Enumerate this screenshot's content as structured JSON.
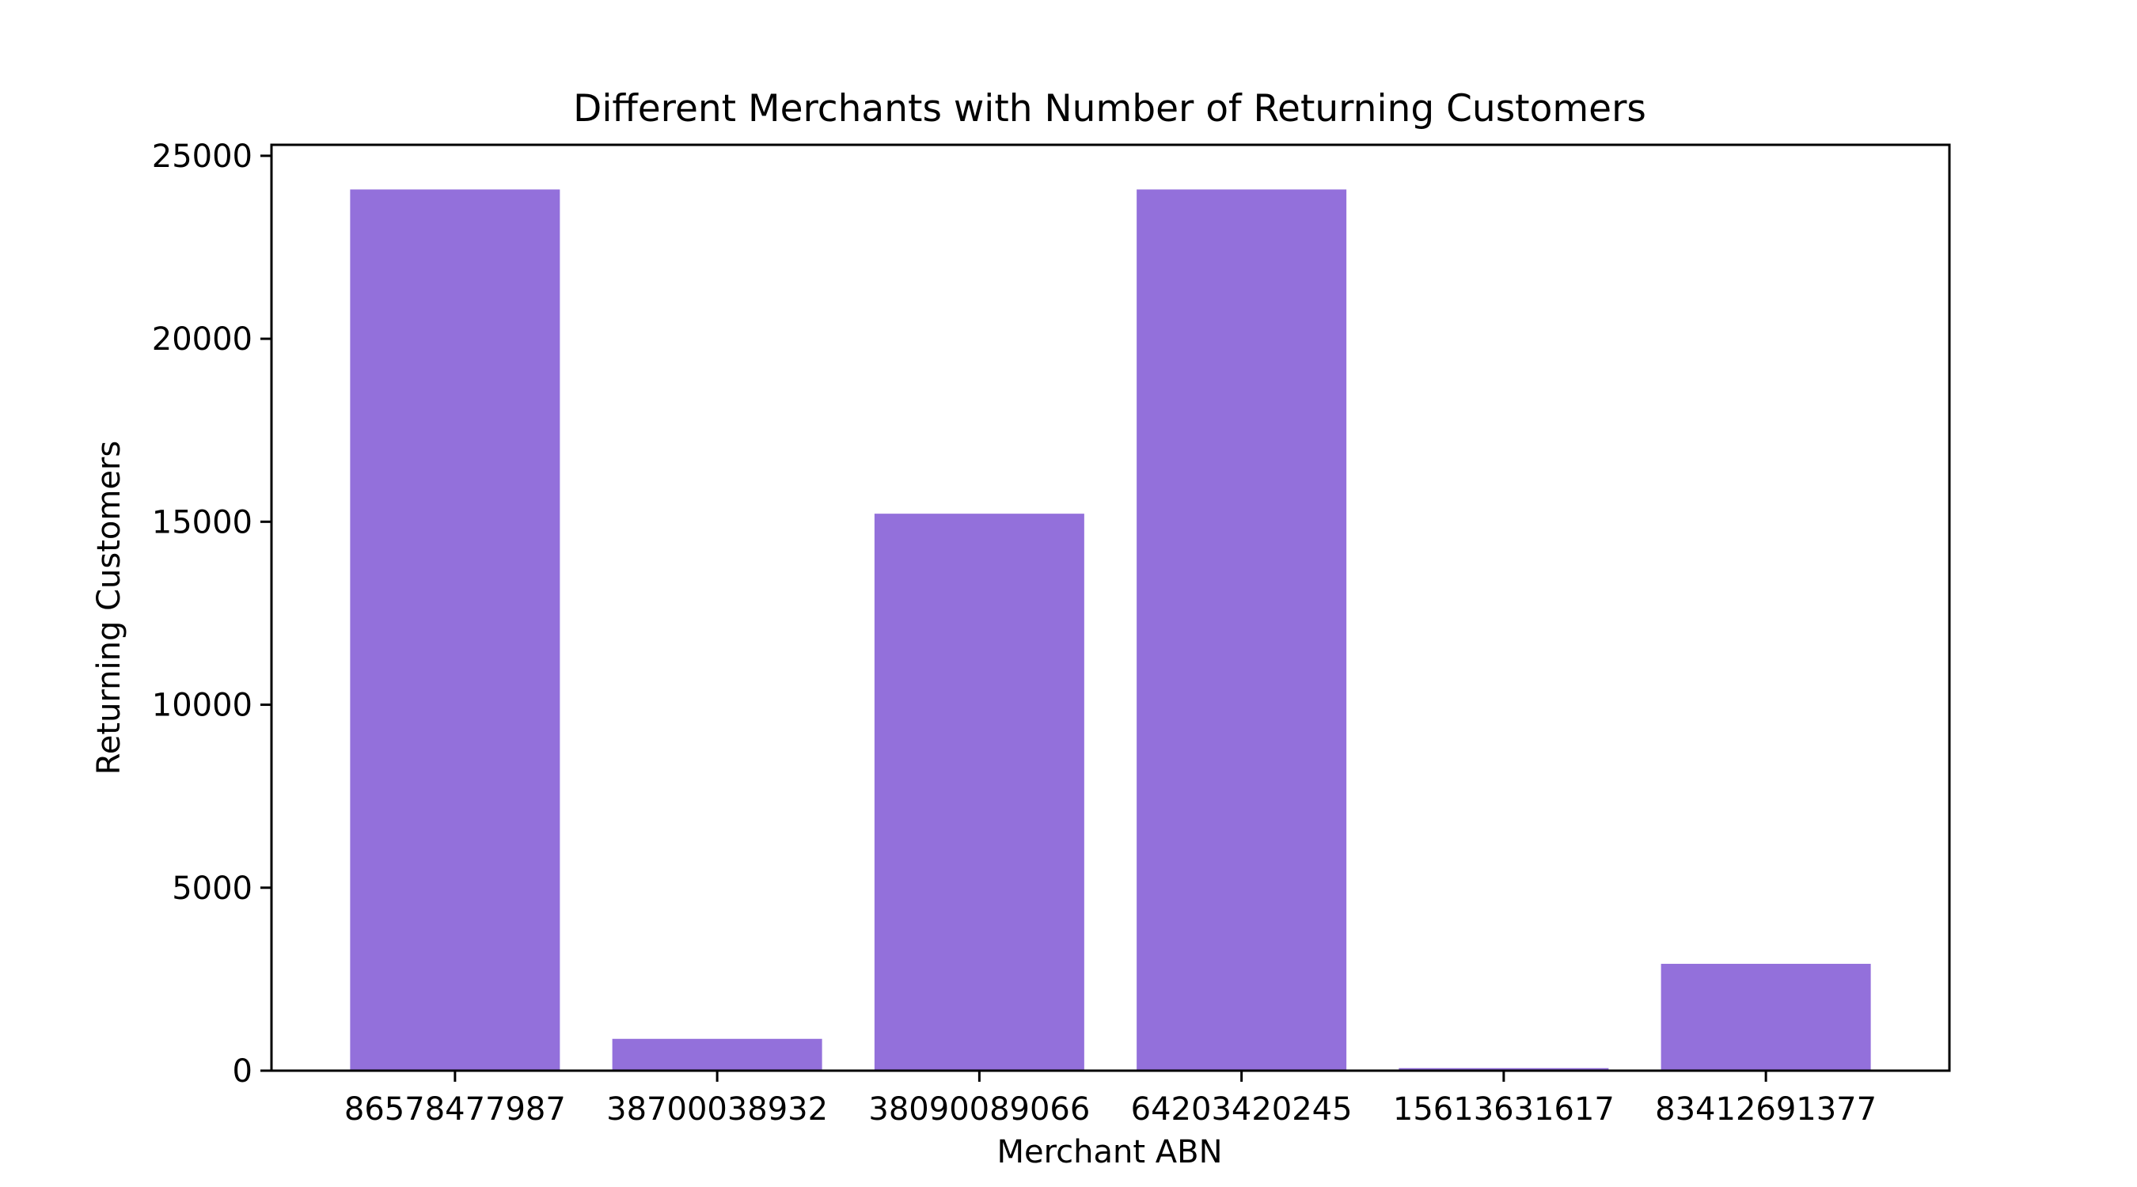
{
  "chart_data": {
    "type": "bar",
    "title": "Different Merchants with Number of Returning Customers",
    "xlabel": "Merchant ABN",
    "ylabel": "Returning Customers",
    "categories": [
      "86578477987",
      "38700038932",
      "38090089066",
      "64203420245",
      "15613631617",
      "83412691377"
    ],
    "values": [
      24080,
      870,
      15220,
      24080,
      70,
      2920
    ],
    "ylim": [
      0,
      25300
    ],
    "yticks": [
      0,
      5000,
      10000,
      15000,
      20000,
      25000
    ],
    "grid": false,
    "legend": "none",
    "bar_color": "#9370DB"
  }
}
